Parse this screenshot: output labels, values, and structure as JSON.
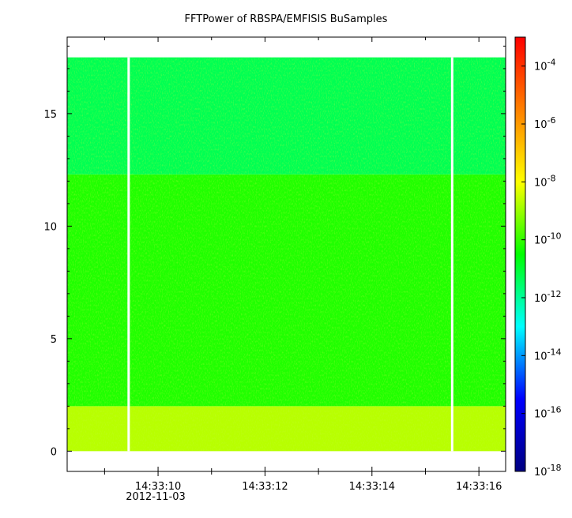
{
  "chart_data": {
    "type": "heatmap",
    "title": "FFTPower of RBSPA/EMFISIS  BuSamples",
    "x_ticks": [
      "14:33:10",
      "14:33:12",
      "14:33:14",
      "14:33:16"
    ],
    "x_tick_values_s": [
      10,
      12,
      14,
      16
    ],
    "x_date_label": "2012-11-03",
    "xlim_s": [
      8.3,
      16.5
    ],
    "y_ticks": [
      "0",
      "5",
      "10",
      "15"
    ],
    "y_tick_values": [
      0,
      5,
      10,
      15
    ],
    "ylim": [
      -0.9,
      18.4
    ],
    "data_extent": {
      "x": [
        8.3,
        16.5
      ],
      "y": [
        0,
        17.5
      ]
    },
    "gaps_x_s": [
      9.45,
      15.5
    ],
    "bands": [
      {
        "y_range": [
          0,
          2
        ],
        "log10_power": -8.7
      },
      {
        "y_range": [
          2,
          12.3
        ],
        "log10_power": -10.2
      },
      {
        "y_range": [
          12.3,
          17.5
        ],
        "log10_power": -11.3
      }
    ],
    "colorbar": {
      "scale": "log",
      "range": [
        1e-18,
        0.001
      ],
      "tick_labels": [
        {
          "base": "10",
          "exp": "-4"
        },
        {
          "base": "10",
          "exp": "-6"
        },
        {
          "base": "10",
          "exp": "-8"
        },
        {
          "base": "10",
          "exp": "-10"
        },
        {
          "base": "10",
          "exp": "-12"
        },
        {
          "base": "10",
          "exp": "-14"
        },
        {
          "base": "10",
          "exp": "-16"
        },
        {
          "base": "10",
          "exp": "-18"
        }
      ],
      "tick_exponents": [
        -4,
        -6,
        -8,
        -10,
        -12,
        -14,
        -16,
        -18
      ],
      "colormap": [
        "#000080",
        "#0000ff",
        "#00ffff",
        "#00ff00",
        "#ffff00",
        "#ff8000",
        "#ff0000"
      ]
    }
  }
}
